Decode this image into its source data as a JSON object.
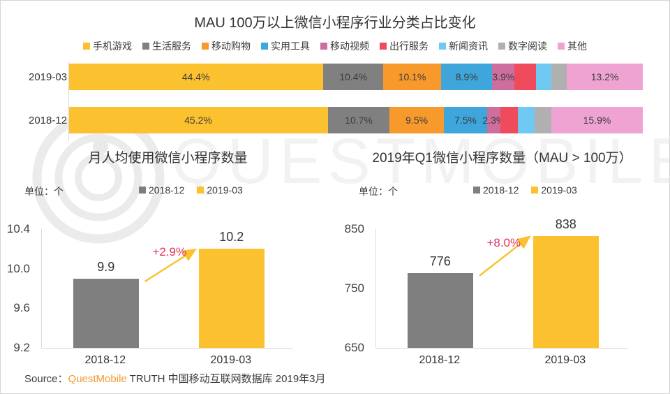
{
  "colors": {
    "accent_yellow": "#FCC12E",
    "bar_gray": "#7F7F7F",
    "growth_red": "#E2335A",
    "axis_gray": "#DCDCDC",
    "source_brand_orange": "#F39A2B"
  },
  "watermark": {
    "text": "QUESTMOBILE"
  },
  "chart_data": [
    {
      "type": "bar",
      "variant": "horizontal-stacked-100pct",
      "title": "MAU 100万以上微信小程序行业分类占比变化",
      "legend_position": "top-center",
      "categories": [
        "手机游戏",
        "生活服务",
        "移动购物",
        "实用工具",
        "移动视频",
        "出行服务",
        "新闻资讯",
        "数字阅读",
        "其他"
      ],
      "category_colors": [
        "#FCC12E",
        "#808080",
        "#F79A2B",
        "#3FA6DB",
        "#CE6E9F",
        "#EF4B5D",
        "#70C9F2",
        "#B0B0B0",
        "#EFA3D2"
      ],
      "xlim": [
        0,
        100
      ],
      "unlabeled_values_estimated": true,
      "series": [
        {
          "name": "2019-03",
          "values": [
            44.4,
            10.4,
            10.1,
            8.9,
            3.9,
            3.7,
            2.7,
            2.7,
            13.2
          ],
          "labels": [
            "44.4%",
            "10.4%",
            "10.1%",
            "8.9%",
            "3.9%",
            "",
            "",
            "",
            "13.2%"
          ]
        },
        {
          "name": "2018-12",
          "values": [
            45.2,
            10.7,
            9.5,
            7.5,
            2.3,
            3.1,
            2.9,
            2.9,
            15.9
          ],
          "labels": [
            "45.2%",
            "10.7%",
            "9.5%",
            "7.5%",
            "2.3%",
            "",
            "",
            "",
            "15.9%"
          ]
        }
      ]
    },
    {
      "type": "bar",
      "title": "月人均使用微信小程序数量",
      "unit_label": "单位：个",
      "categories": [
        "2018-12",
        "2019-03"
      ],
      "values": [
        9.9,
        10.2
      ],
      "value_labels": [
        "9.9",
        "10.2"
      ],
      "bar_colors": [
        "#7F7F7F",
        "#FCC12E"
      ],
      "growth_label": "+2.9%",
      "ylim": [
        9.2,
        10.4
      ],
      "yticks": [
        "10.4",
        "10.0",
        "9.6",
        "9.2"
      ],
      "grid": false,
      "legend_position": "top"
    },
    {
      "type": "bar",
      "title": "2019年Q1微信小程序数量（MAU > 100万）",
      "unit_label": "单位：个",
      "categories": [
        "2018-12",
        "2019-03"
      ],
      "values": [
        776,
        838
      ],
      "value_labels": [
        "776",
        "838"
      ],
      "bar_colors": [
        "#7F7F7F",
        "#FCC12E"
      ],
      "growth_label": "+8.0%",
      "ylim": [
        650,
        850
      ],
      "yticks": [
        "850",
        "750",
        "650"
      ],
      "grid": false,
      "legend_position": "top"
    }
  ],
  "source": {
    "prefix": "Source：",
    "brand": "QuestMobile",
    "rest": " TRUTH 中国移动互联网数据库 2019年3月"
  }
}
